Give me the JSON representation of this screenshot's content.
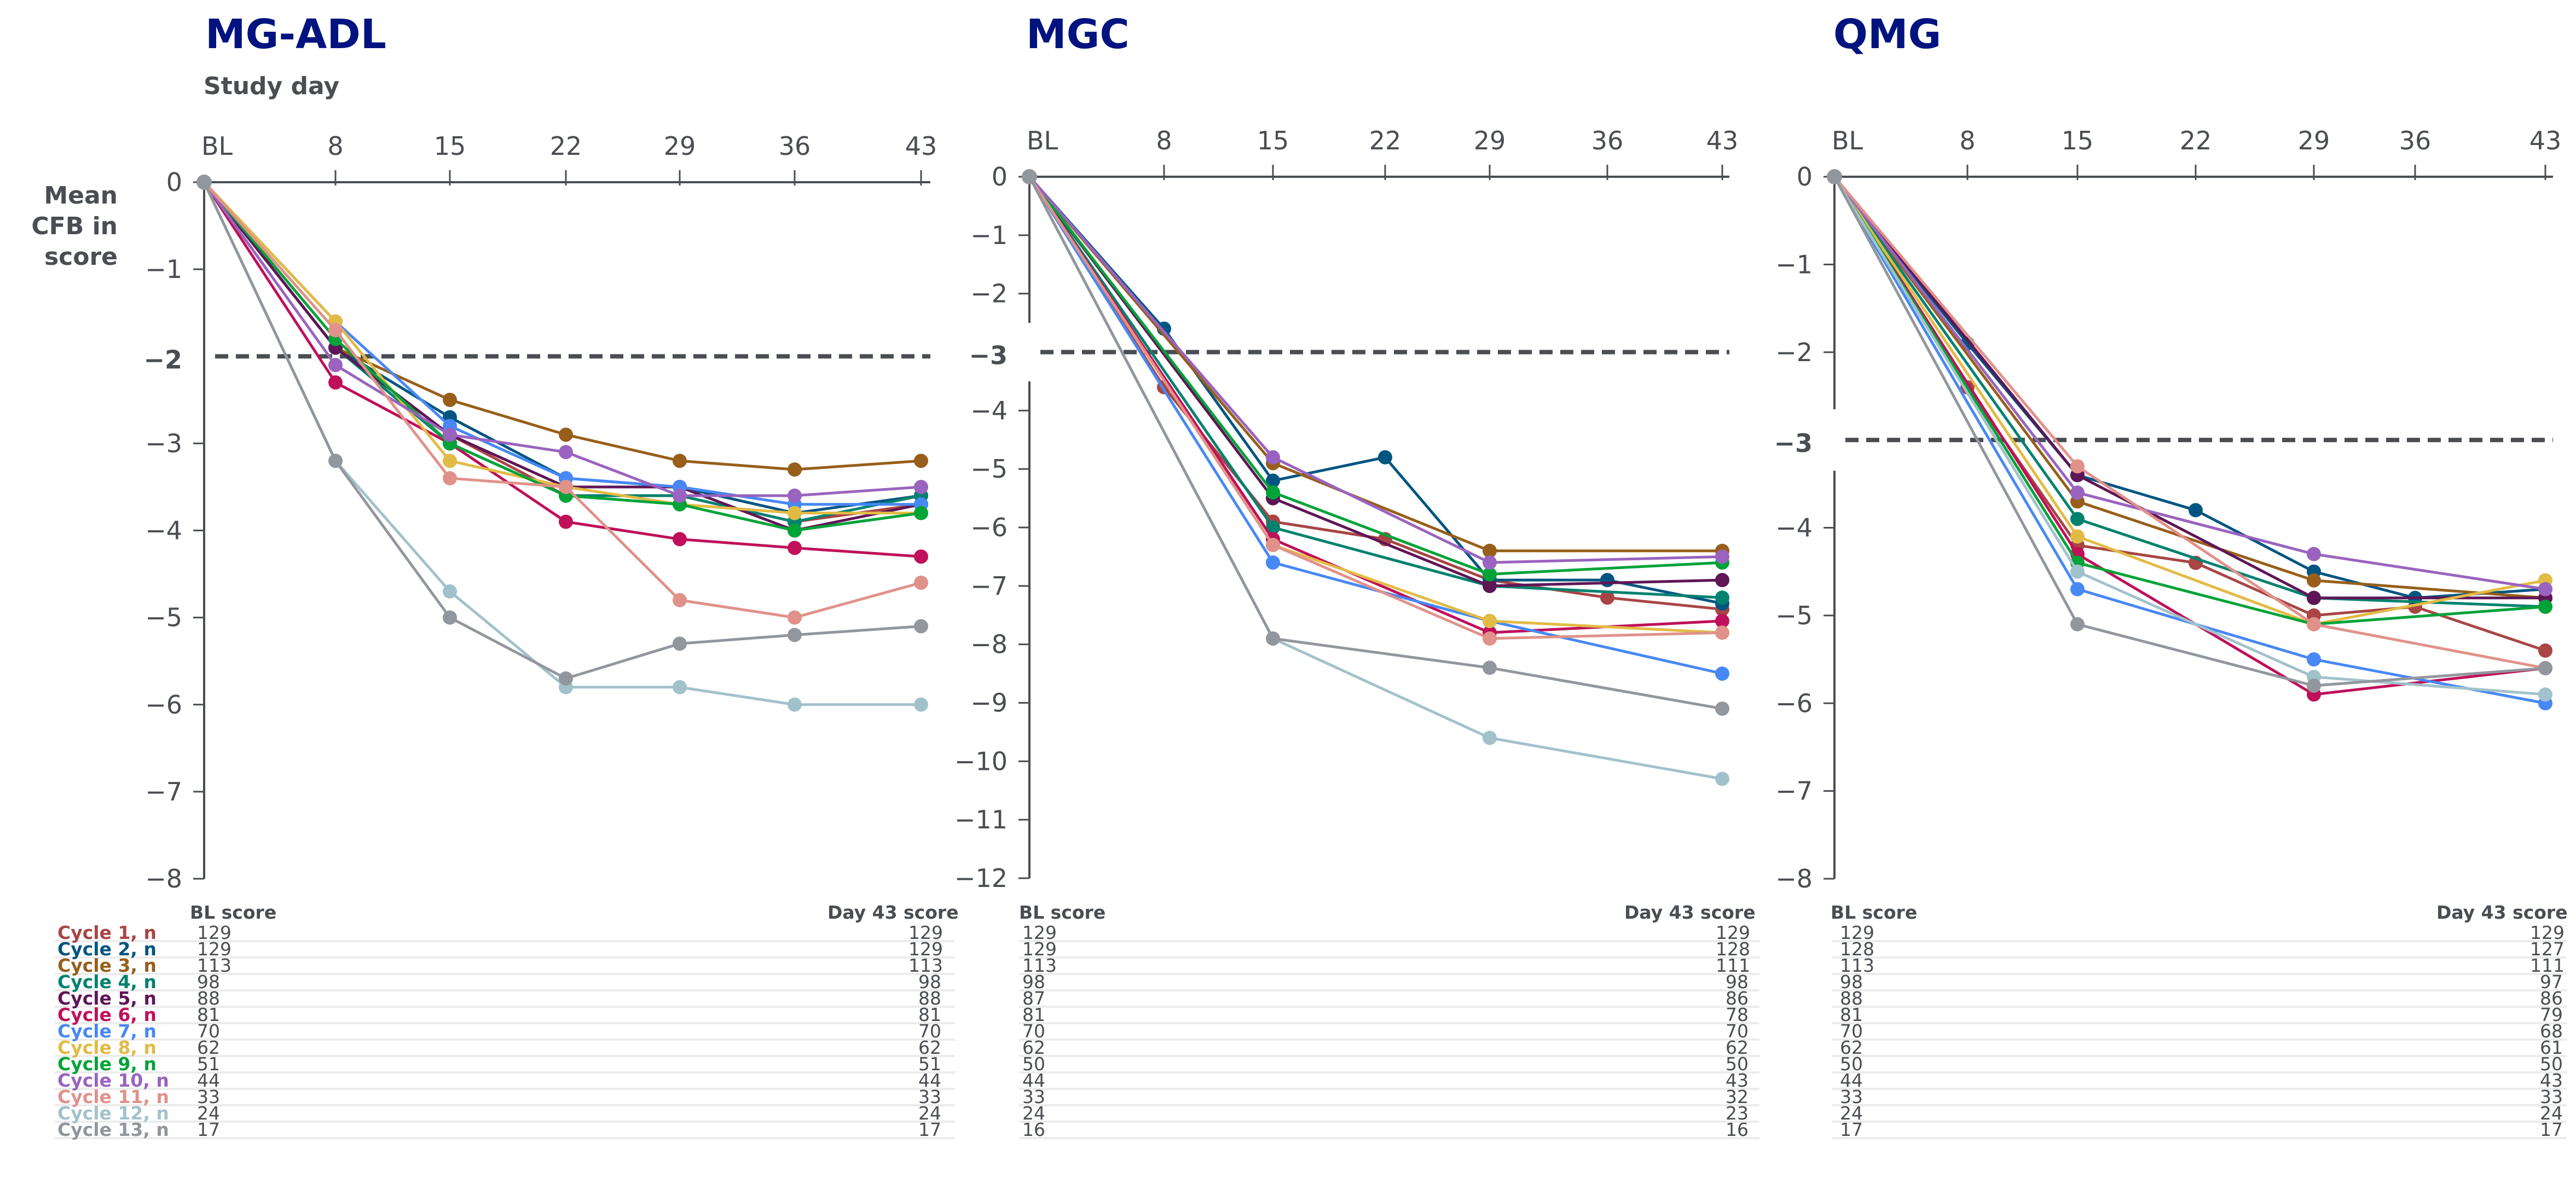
{
  "common": {
    "xlabel": "Study day",
    "ylabel": "Mean CFB in score",
    "ylabel_lines": [
      "Mean",
      "CFB in",
      "score"
    ],
    "x_ticks": [
      "BL",
      "8",
      "15",
      "22",
      "29",
      "36",
      "43"
    ],
    "x_days": [
      0,
      8,
      15,
      22,
      29,
      36,
      43
    ],
    "table_headers": {
      "bl": "BL score",
      "day43": "Day 43 score"
    }
  },
  "legend": [
    {
      "label": "Cycle 1, n",
      "color": "#a94545"
    },
    {
      "label": "Cycle 2, n",
      "color": "#005581"
    },
    {
      "label": "Cycle 3, n",
      "color": "#975f1a"
    },
    {
      "label": "Cycle 4, n",
      "color": "#00826f"
    },
    {
      "label": "Cycle 5, n",
      "color": "#5f1656"
    },
    {
      "label": "Cycle 6, n",
      "color": "#c0105a"
    },
    {
      "label": "Cycle 7, n",
      "color": "#4788f5"
    },
    {
      "label": "Cycle 8, n",
      "color": "#e2bb45"
    },
    {
      "label": "Cycle 9, n",
      "color": "#00a338"
    },
    {
      "label": "Cycle 10, n",
      "color": "#9a63bf"
    },
    {
      "label": "Cycle 11, n",
      "color": "#e0928a"
    },
    {
      "label": "Cycle 12, n",
      "color": "#a2c2cb"
    },
    {
      "label": "Cycle 13, n",
      "color": "#92969d"
    }
  ],
  "chart_data": [
    {
      "type": "line",
      "title": "MG-ADL",
      "xlabel": "Study day",
      "ylabel": "Mean CFB in score",
      "x": [
        0,
        8,
        15,
        22,
        29,
        36,
        43
      ],
      "ylim": [
        -8,
        0
      ],
      "y_ticks": [
        "0",
        "−1",
        "−2",
        "−3",
        "−4",
        "−5",
        "−6",
        "−7",
        "−8"
      ],
      "threshold": {
        "value": -2,
        "label": "−2",
        "style": "dashed"
      },
      "series": [
        {
          "name": "Cycle 1",
          "values": [
            0,
            -1.9,
            -2.9,
            -3.6,
            -3.6,
            -3.9,
            -3.7
          ]
        },
        {
          "name": "Cycle 2",
          "values": [
            0,
            -1.9,
            -2.7,
            -3.4,
            -3.5,
            -3.8,
            -3.6
          ]
        },
        {
          "name": "Cycle 3",
          "values": [
            0,
            -1.9,
            -2.5,
            -2.9,
            -3.2,
            -3.3,
            -3.2
          ]
        },
        {
          "name": "Cycle 4",
          "values": [
            0,
            -1.9,
            -3.0,
            -3.6,
            -3.6,
            -3.9,
            -3.6
          ]
        },
        {
          "name": "Cycle 5",
          "values": [
            0,
            -1.9,
            -2.9,
            -3.5,
            -3.5,
            -4.0,
            -3.7
          ]
        },
        {
          "name": "Cycle 6",
          "values": [
            0,
            -2.3,
            -3.0,
            -3.9,
            -4.1,
            -4.2,
            -4.3
          ]
        },
        {
          "name": "Cycle 7",
          "values": [
            0,
            -1.6,
            -2.8,
            -3.4,
            -3.5,
            -3.7,
            -3.7
          ]
        },
        {
          "name": "Cycle 8",
          "values": [
            0,
            -1.6,
            -3.2,
            -3.5,
            -3.7,
            -3.8,
            -3.8
          ]
        },
        {
          "name": "Cycle 9",
          "values": [
            0,
            -1.8,
            -3.0,
            -3.6,
            -3.7,
            -4.0,
            -3.8
          ]
        },
        {
          "name": "Cycle 10",
          "values": [
            0,
            -2.1,
            -2.9,
            -3.1,
            -3.6,
            -3.6,
            -3.5
          ]
        },
        {
          "name": "Cycle 11",
          "values": [
            0,
            -1.7,
            -3.4,
            -3.5,
            -4.8,
            -5.0,
            -4.6
          ]
        },
        {
          "name": "Cycle 12",
          "values": [
            0,
            -3.2,
            -4.7,
            -5.8,
            -5.8,
            -6.0,
            -6.0
          ]
        },
        {
          "name": "Cycle 13",
          "values": [
            0,
            -3.2,
            -5.0,
            -5.7,
            -5.3,
            -5.2,
            -5.1
          ]
        }
      ],
      "table": {
        "bl": [
          "129",
          "129",
          "113",
          "98",
          "88",
          "81",
          "70",
          "62",
          "51",
          "44",
          "33",
          "24",
          "17"
        ],
        "day43": [
          "129",
          "129",
          "113",
          "98",
          "88",
          "81",
          "70",
          "62",
          "51",
          "44",
          "33",
          "24",
          "17"
        ]
      }
    },
    {
      "type": "line",
      "title": "MGC",
      "xlabel": "Study day",
      "ylabel": "Mean CFB in score",
      "x": [
        0,
        8,
        15,
        22,
        29,
        36,
        43
      ],
      "ylim": [
        -12,
        0
      ],
      "y_ticks": [
        "0",
        "−1",
        "−2",
        "−3",
        "−4",
        "−5",
        "−6",
        "−7",
        "−8",
        "−9",
        "−10",
        "−11",
        "−12"
      ],
      "threshold": {
        "value": -3,
        "label": "−3",
        "style": "dashed"
      },
      "series": [
        {
          "name": "Cycle 1",
          "values": [
            0,
            -3.6,
            -5.9,
            -6.2,
            -6.9,
            -7.2,
            -7.4
          ]
        },
        {
          "name": "Cycle 2",
          "values": [
            0,
            -2.6,
            -5.2,
            -4.8,
            -6.9,
            -6.9,
            -7.3
          ]
        },
        {
          "name": "Cycle 3",
          "values": [
            0,
            null,
            -4.9,
            null,
            -6.4,
            null,
            -6.4
          ]
        },
        {
          "name": "Cycle 4",
          "values": [
            0,
            null,
            -6.0,
            null,
            -7.0,
            null,
            -7.2
          ]
        },
        {
          "name": "Cycle 5",
          "values": [
            0,
            null,
            -5.5,
            null,
            -7.0,
            null,
            -6.9
          ]
        },
        {
          "name": "Cycle 6",
          "values": [
            0,
            null,
            -6.2,
            null,
            -7.8,
            null,
            -7.6
          ]
        },
        {
          "name": "Cycle 7",
          "values": [
            0,
            null,
            -6.6,
            null,
            -7.6,
            null,
            -8.5
          ]
        },
        {
          "name": "Cycle 8",
          "values": [
            0,
            null,
            -6.3,
            null,
            -7.6,
            null,
            -7.8
          ]
        },
        {
          "name": "Cycle 9",
          "values": [
            0,
            null,
            -5.4,
            null,
            -6.8,
            null,
            -6.6
          ]
        },
        {
          "name": "Cycle 10",
          "values": [
            0,
            null,
            -4.8,
            null,
            -6.6,
            null,
            -6.5
          ]
        },
        {
          "name": "Cycle 11",
          "values": [
            0,
            null,
            -6.3,
            null,
            -7.9,
            null,
            -7.8
          ]
        },
        {
          "name": "Cycle 12",
          "values": [
            0,
            null,
            -7.9,
            null,
            -9.6,
            null,
            -10.3
          ]
        },
        {
          "name": "Cycle 13",
          "values": [
            0,
            null,
            -7.9,
            null,
            -8.4,
            null,
            -9.1
          ]
        }
      ],
      "table": {
        "bl": [
          "129",
          "129",
          "113",
          "98",
          "87",
          "81",
          "70",
          "62",
          "50",
          "44",
          "33",
          "24",
          "16"
        ],
        "day43": [
          "129",
          "128",
          "111",
          "98",
          "86",
          "78",
          "70",
          "62",
          "50",
          "43",
          "32",
          "23",
          "16"
        ]
      }
    },
    {
      "type": "line",
      "title": "QMG",
      "xlabel": "Study day",
      "ylabel": "Mean CFB in score",
      "x": [
        0,
        8,
        15,
        22,
        29,
        36,
        43
      ],
      "ylim": [
        -8,
        0
      ],
      "y_ticks": [
        "0",
        "−1",
        "−2",
        "−3",
        "−4",
        "−5",
        "−6",
        "−7",
        "−8"
      ],
      "threshold": {
        "value": -3,
        "label": "−3",
        "style": "dashed"
      },
      "series": [
        {
          "name": "Cycle 1",
          "values": [
            0,
            -2.4,
            -4.2,
            -4.4,
            -5.0,
            -4.9,
            -5.4
          ]
        },
        {
          "name": "Cycle 2",
          "values": [
            0,
            -1.9,
            -3.4,
            -3.8,
            -4.5,
            -4.8,
            -4.7
          ]
        },
        {
          "name": "Cycle 3",
          "values": [
            0,
            null,
            -3.7,
            null,
            -4.6,
            null,
            -4.8
          ]
        },
        {
          "name": "Cycle 4",
          "values": [
            0,
            null,
            -3.9,
            null,
            -4.8,
            null,
            -4.9
          ]
        },
        {
          "name": "Cycle 5",
          "values": [
            0,
            null,
            -3.4,
            null,
            -4.8,
            null,
            -4.8
          ]
        },
        {
          "name": "Cycle 6",
          "values": [
            0,
            null,
            -4.3,
            null,
            -5.9,
            null,
            -5.6
          ]
        },
        {
          "name": "Cycle 7",
          "values": [
            0,
            null,
            -4.7,
            null,
            -5.5,
            null,
            -6.0
          ]
        },
        {
          "name": "Cycle 8",
          "values": [
            0,
            null,
            -4.1,
            null,
            -5.1,
            null,
            -4.6
          ]
        },
        {
          "name": "Cycle 9",
          "values": [
            0,
            null,
            -4.4,
            null,
            -5.1,
            null,
            -4.9
          ]
        },
        {
          "name": "Cycle 10",
          "values": [
            0,
            null,
            -3.6,
            null,
            -4.3,
            null,
            -4.7
          ]
        },
        {
          "name": "Cycle 11",
          "values": [
            0,
            null,
            -3.3,
            null,
            -5.1,
            null,
            -5.6
          ]
        },
        {
          "name": "Cycle 12",
          "values": [
            0,
            null,
            -4.5,
            null,
            -5.7,
            null,
            -5.9
          ]
        },
        {
          "name": "Cycle 13",
          "values": [
            0,
            null,
            -5.1,
            null,
            -5.8,
            null,
            -5.6
          ]
        }
      ],
      "table": {
        "bl": [
          "129",
          "128",
          "113",
          "98",
          "88",
          "81",
          "70",
          "62",
          "50",
          "44",
          "33",
          "24",
          "17"
        ],
        "day43": [
          "129",
          "127",
          "111",
          "97",
          "86",
          "79",
          "68",
          "61",
          "50",
          "43",
          "33",
          "24",
          "17"
        ]
      }
    }
  ]
}
